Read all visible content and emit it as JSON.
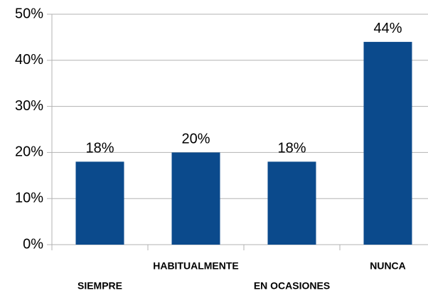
{
  "chart_data": {
    "type": "bar",
    "categories": [
      "SIEMPRE",
      "HABITUALMENTE",
      "EN OCASIONES",
      "NUNCA"
    ],
    "values": [
      18,
      20,
      18,
      44
    ],
    "value_labels": [
      "18%",
      "20%",
      "18%",
      "44%"
    ],
    "color": "#0b4a8c",
    "ylim": [
      0,
      50
    ],
    "yticks": [
      {
        "value": 0,
        "label": "0%"
      },
      {
        "value": 10,
        "label": "10%"
      },
      {
        "value": 20,
        "label": "20%"
      },
      {
        "value": 30,
        "label": "30%"
      },
      {
        "value": 40,
        "label": "40%"
      },
      {
        "value": 50,
        "label": "50%"
      }
    ],
    "grid": true
  }
}
